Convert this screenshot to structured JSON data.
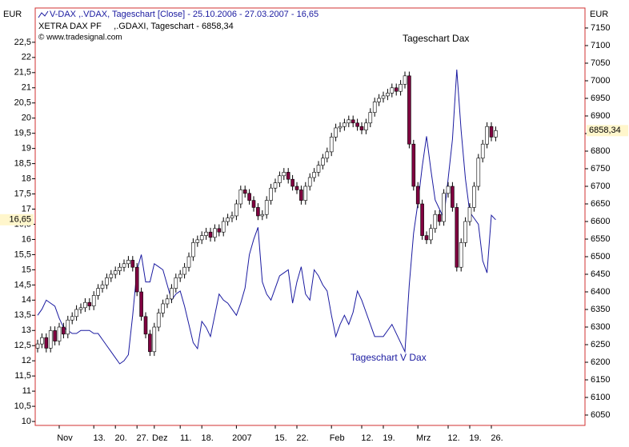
{
  "chart_data": {
    "type": "candlestick",
    "axis_unit_left": "EUR",
    "axis_unit_right": "EUR",
    "copyright": "© www.tradesignal.com",
    "annotations": [
      "Tageschart Dax",
      "Tageschart V Dax"
    ],
    "categories": [
      null,
      null,
      null,
      null,
      null,
      "Nov",
      null,
      null,
      null,
      null,
      null,
      null,
      null,
      "13.",
      null,
      null,
      null,
      null,
      "20.",
      null,
      null,
      null,
      null,
      "27.",
      null,
      null,
      null,
      "Dez",
      null,
      null,
      null,
      null,
      null,
      "11.",
      null,
      null,
      null,
      null,
      "18.",
      null,
      null,
      null,
      null,
      null,
      null,
      null,
      "2007",
      null,
      null,
      null,
      null,
      null,
      null,
      null,
      null,
      "15.",
      null,
      null,
      null,
      null,
      "22.",
      null,
      null,
      null,
      null,
      null,
      null,
      null,
      "Feb",
      null,
      null,
      null,
      null,
      null,
      null,
      "12.",
      null,
      null,
      null,
      null,
      "19.",
      null,
      null,
      null,
      null,
      null,
      null,
      null,
      "Mrz",
      null,
      null,
      null,
      null,
      null,
      null,
      "12.",
      null,
      null,
      null,
      null,
      "19.",
      null,
      null,
      null,
      null,
      "26.",
      null
    ],
    "ylim": [
      9.87,
      23.63
    ],
    "yticks": [
      10,
      {
        "value": 10.5,
        "label": "10,5"
      },
      11,
      {
        "value": 11.5,
        "label": "11,5"
      },
      12,
      {
        "value": 12.5,
        "label": "12,5"
      },
      13,
      {
        "value": 13.5,
        "label": "13,5"
      },
      14,
      {
        "value": 14.5,
        "label": "14,5"
      },
      15,
      {
        "value": 15.5,
        "label": "15,5"
      },
      16,
      {
        "value": 16.5,
        "label": "16,5"
      },
      17,
      {
        "value": 17.5,
        "label": "17,5"
      },
      18,
      {
        "value": 18.5,
        "label": "18,5"
      },
      19,
      {
        "value": 19.5,
        "label": "19,5"
      },
      20,
      {
        "value": 20.5,
        "label": "20,5"
      },
      21,
      {
        "value": 21.5,
        "label": "21,5"
      },
      22,
      {
        "value": 22.5,
        "label": "22,5"
      }
    ],
    "y2lim": [
      6020.5,
      7206.8
    ],
    "y2ticks": [
      6050,
      6100,
      6150,
      6200,
      6250,
      6300,
      6350,
      6400,
      6450,
      6500,
      6550,
      6600,
      6650,
      6700,
      6750,
      6800,
      6850,
      6900,
      6950,
      7000,
      7050,
      7100,
      7150
    ],
    "series": [
      {
        "name": "V-DAX ,.VDAX, Tageschart [Close] - 25.10.2006 - 27.03.2007 - 16,65",
        "type": "line",
        "axis": "y",
        "color": "#1a1aa0",
        "last_label": "16,65",
        "values": [
          13.5,
          13.7,
          14.0,
          13.9,
          13.8,
          13.4,
          13.1,
          13.0,
          12.9,
          12.9,
          13.0,
          13.0,
          13.0,
          12.9,
          12.9,
          12.7,
          12.5,
          12.3,
          12.1,
          11.9,
          12.0,
          12.2,
          13.5,
          15.0,
          15.5,
          14.6,
          14.6,
          15.2,
          15.1,
          15.0,
          14.5,
          14.0,
          14.2,
          14.3,
          13.8,
          13.2,
          12.6,
          12.4,
          13.3,
          13.1,
          12.8,
          13.5,
          14.2,
          14.0,
          13.9,
          13.7,
          13.5,
          13.9,
          14.4,
          15.5,
          16.0,
          16.4,
          14.6,
          14.2,
          14.0,
          14.4,
          14.8,
          14.9,
          15.0,
          13.9,
          14.6,
          15.1,
          14.2,
          14.0,
          15.0,
          14.8,
          14.5,
          14.3,
          13.5,
          12.8,
          13.2,
          13.5,
          13.2,
          13.6,
          14.3,
          14.0,
          13.6,
          13.2,
          12.8,
          12.8,
          12.8,
          13.0,
          13.2,
          12.9,
          12.6,
          12.3,
          14.5,
          16.2,
          17.2,
          18.4,
          19.4,
          18.3,
          17.3,
          17.0,
          16.7,
          18.0,
          19.3,
          21.6,
          19.6,
          18.0,
          16.9,
          16.7,
          16.5,
          15.3,
          14.9,
          16.8,
          16.65
        ]
      },
      {
        "name": "XETRA DAX PF     ,.GDAXI, Tageschart - 6858,34",
        "type": "candlestick",
        "axis": "y2",
        "up_color": "#ffffff",
        "down_color": "#800040",
        "last_label": "6858,34",
        "open": [
          6240,
          6252,
          6270,
          6240,
          6290,
          6260,
          6300,
          6280,
          6320,
          6330,
          6350,
          6355,
          6370,
          6360,
          6390,
          6410,
          6420,
          6440,
          6450,
          6460,
          6470,
          6480,
          6490,
          6470,
          6400,
          6330,
          6280,
          6230,
          6300,
          6340,
          6366,
          6380,
          6410,
          6440,
          6450,
          6470,
          6500,
          6540,
          6548,
          6560,
          6570,
          6555,
          6580,
          6570,
          6600,
          6610,
          6616,
          6650,
          6690,
          6680,
          6660,
          6640,
          6616,
          6620,
          6660,
          6695,
          6710,
          6730,
          6740,
          6720,
          6700,
          6690,
          6660,
          6700,
          6725,
          6740,
          6760,
          6780,
          6798,
          6840,
          6866,
          6870,
          6880,
          6889,
          6880,
          6870,
          6860,
          6880,
          6910,
          6940,
          6950,
          6957,
          6965,
          6980,
          6970,
          6990,
          7014,
          6820,
          6700,
          6650,
          6560,
          6548,
          6580,
          6620,
          6600,
          6680,
          6700,
          6640,
          6470,
          6540,
          6600,
          6640,
          6700,
          6780,
          6820,
          6870,
          6840
        ],
        "high": [
          6264,
          6282,
          6282,
          6302,
          6302,
          6312,
          6312,
          6332,
          6342,
          6362,
          6367,
          6382,
          6382,
          6402,
          6422,
          6432,
          6452,
          6462,
          6472,
          6482,
          6492,
          6502,
          6502,
          6482,
          6412,
          6342,
          6292,
          6312,
          6352,
          6378,
          6392,
          6422,
          6452,
          6462,
          6482,
          6512,
          6552,
          6560,
          6572,
          6582,
          6582,
          6592,
          6592,
          6612,
          6622,
          6628,
          6662,
          6702,
          6702,
          6692,
          6672,
          6652,
          6632,
          6672,
          6707,
          6722,
          6742,
          6752,
          6752,
          6732,
          6712,
          6702,
          6712,
          6737,
          6752,
          6772,
          6792,
          6810,
          6852,
          6878,
          6882,
          6892,
          6901,
          6901,
          6892,
          6882,
          6892,
          6922,
          6952,
          6962,
          6969,
          6977,
          6992,
          6992,
          7002,
          7026,
          7026,
          6832,
          6712,
          6662,
          6572,
          6592,
          6632,
          6632,
          6692,
          6712,
          6712,
          6652,
          6552,
          6612,
          6652,
          6712,
          6792,
          6832,
          6882,
          6882,
          6870
        ],
        "low": [
          6228,
          6240,
          6228,
          6228,
          6248,
          6248,
          6268,
          6268,
          6308,
          6318,
          6338,
          6343,
          6348,
          6348,
          6378,
          6398,
          6408,
          6428,
          6438,
          6448,
          6458,
          6468,
          6458,
          6388,
          6318,
          6268,
          6218,
          6218,
          6288,
          6328,
          6354,
          6368,
          6398,
          6428,
          6438,
          6458,
          6488,
          6528,
          6536,
          6548,
          6543,
          6543,
          6558,
          6558,
          6588,
          6598,
          6604,
          6638,
          6668,
          6648,
          6628,
          6604,
          6604,
          6608,
          6648,
          6683,
          6698,
          6718,
          6708,
          6688,
          6678,
          6648,
          6648,
          6688,
          6713,
          6728,
          6748,
          6768,
          6786,
          6828,
          6854,
          6858,
          6868,
          6868,
          6858,
          6848,
          6848,
          6868,
          6898,
          6928,
          6938,
          6945,
          6953,
          6958,
          6958,
          6978,
          6808,
          6688,
          6638,
          6548,
          6536,
          6536,
          6568,
          6588,
          6588,
          6668,
          6628,
          6458,
          6458,
          6528,
          6588,
          6628,
          6688,
          6768,
          6808,
          6828,
          6828
        ],
        "close": [
          6252,
          6270,
          6240,
          6290,
          6260,
          6300,
          6280,
          6320,
          6330,
          6350,
          6355,
          6370,
          6360,
          6390,
          6410,
          6420,
          6440,
          6450,
          6460,
          6470,
          6480,
          6490,
          6470,
          6400,
          6330,
          6280,
          6230,
          6300,
          6340,
          6366,
          6380,
          6410,
          6440,
          6450,
          6470,
          6500,
          6540,
          6548,
          6560,
          6570,
          6555,
          6580,
          6570,
          6600,
          6610,
          6616,
          6650,
          6690,
          6680,
          6660,
          6640,
          6616,
          6620,
          6660,
          6695,
          6710,
          6730,
          6740,
          6720,
          6700,
          6690,
          6660,
          6700,
          6725,
          6740,
          6760,
          6780,
          6798,
          6840,
          6866,
          6870,
          6880,
          6889,
          6880,
          6870,
          6860,
          6880,
          6910,
          6940,
          6950,
          6957,
          6965,
          6980,
          6970,
          6990,
          7014,
          6820,
          6700,
          6650,
          6560,
          6548,
          6580,
          6620,
          6600,
          6680,
          6700,
          6640,
          6470,
          6540,
          6600,
          6640,
          6700,
          6780,
          6820,
          6870,
          6840,
          6858.34
        ]
      }
    ]
  }
}
